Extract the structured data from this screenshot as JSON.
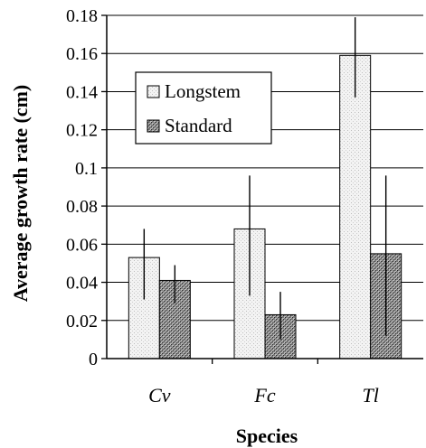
{
  "chart_data": {
    "type": "bar",
    "title": "",
    "xlabel": "Species",
    "ylabel": "Average growth rate (cm)",
    "categories": [
      "Cv",
      "Fc",
      "Tl"
    ],
    "series": [
      {
        "name": "Longstem",
        "values": [
          0.053,
          0.068,
          0.159
        ],
        "error_low": [
          0.031,
          0.033,
          0.137
        ],
        "error_high": [
          0.068,
          0.096,
          0.179
        ]
      },
      {
        "name": "Standard",
        "values": [
          0.041,
          0.023,
          0.055
        ],
        "error_low": [
          0.029,
          0.01,
          0.012
        ],
        "error_high": [
          0.049,
          0.035,
          0.096
        ]
      }
    ],
    "ylim": [
      0,
      0.18
    ],
    "yticks": [
      0,
      0.02,
      0.04,
      0.06,
      0.08,
      0.1,
      0.12,
      0.14,
      0.16,
      0.18
    ],
    "ytick_labels": [
      "0",
      "0.02",
      "0.04",
      "0.06",
      "0.08",
      "0.1",
      "0.12",
      "0.14",
      "0.16",
      "0.18"
    ],
    "grid": "horizontal",
    "legend_position": "upper-left-inside",
    "colors": {
      "Longstem": "#ececec",
      "Standard": "#8a8a8a",
      "axis": "#000000"
    }
  }
}
